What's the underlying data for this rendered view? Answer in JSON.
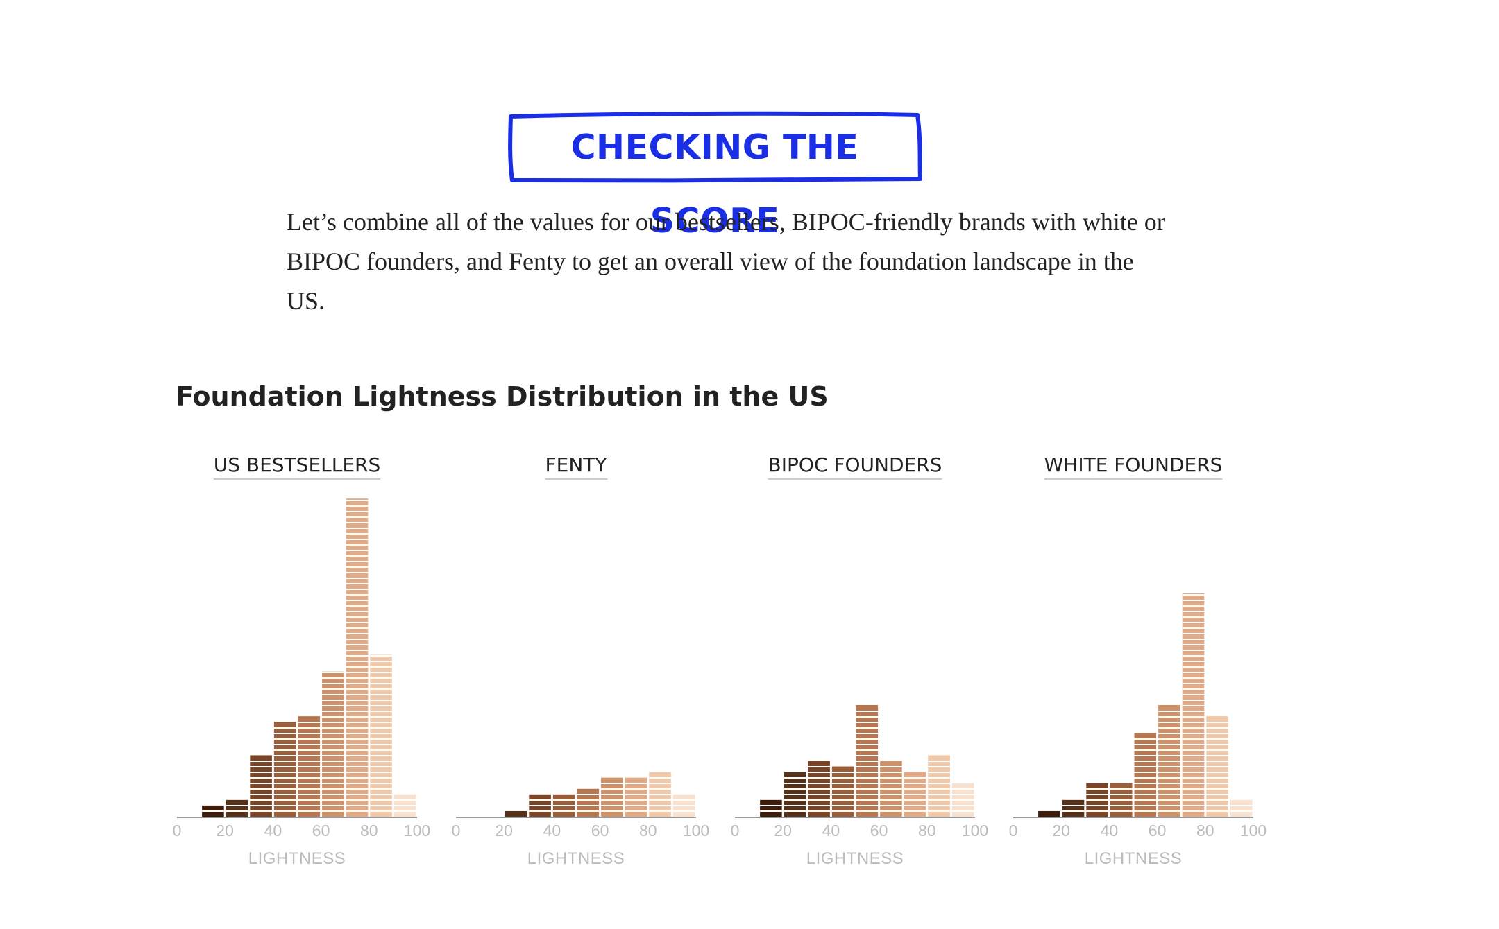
{
  "header": {
    "badge": "CHECKING THE SCORE",
    "intro": "Let’s combine all of the values for our bestsellers, BIPOC-friendly brands with white or BIPOC founders, and Fenty to get an overall view of the foundation landscape in the US."
  },
  "colors": {
    "badge_blue": "#1a2ee6",
    "text": "#222222",
    "axis_text": "#bbbbbb",
    "bin_shades": [
      "#2b1206",
      "#3d1c0c",
      "#553119",
      "#7a4527",
      "#9a5e3a",
      "#b9774f",
      "#cf9168",
      "#e3a985",
      "#f0c7a7",
      "#f9e1cf"
    ]
  },
  "chart_data": {
    "type": "bar",
    "title": "Foundation Lightness Distribution in the US",
    "xlabel": "LIGHTNESS",
    "xlim": [
      0,
      100
    ],
    "xticks": [
      "0",
      "20",
      "40",
      "60",
      "80",
      "100"
    ],
    "bin_width": 10,
    "bin_starts": [
      0,
      10,
      20,
      30,
      40,
      50,
      60,
      70,
      80,
      90
    ],
    "panels": [
      {
        "title": "US BESTSELLERS",
        "values": [
          0,
          2,
          3,
          11,
          17,
          18,
          26,
          57,
          29,
          4
        ]
      },
      {
        "title": "FENTY",
        "values": [
          0,
          0,
          1,
          4,
          4,
          5,
          7,
          7,
          8,
          4
        ]
      },
      {
        "title": "BIPOC FOUNDERS",
        "values": [
          0,
          3,
          8,
          10,
          9,
          20,
          10,
          8,
          11,
          6
        ]
      },
      {
        "title": "WHITE FOUNDERS",
        "values": [
          0,
          1,
          3,
          6,
          6,
          15,
          20,
          40,
          18,
          3
        ]
      }
    ]
  }
}
